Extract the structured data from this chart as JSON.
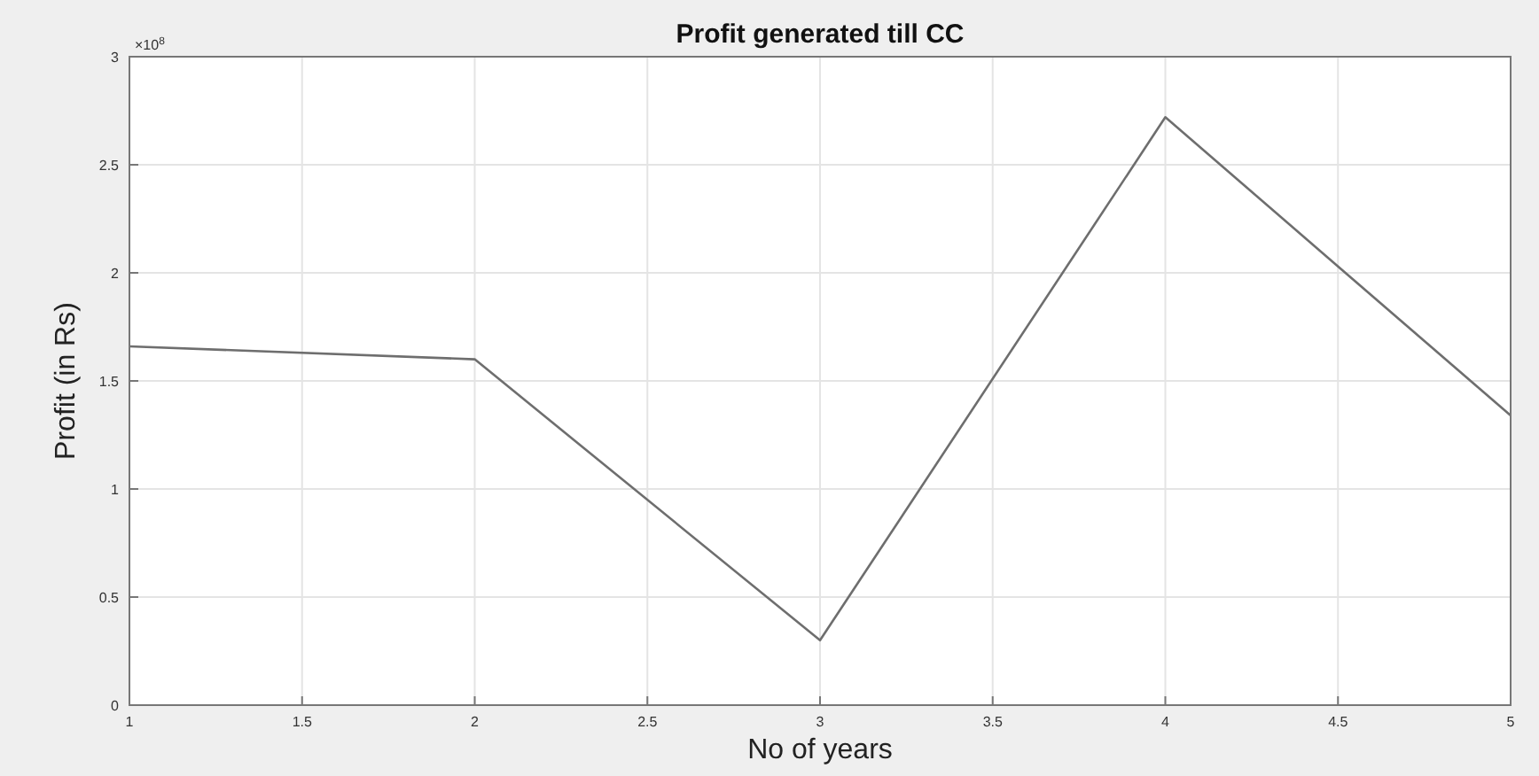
{
  "chart_data": {
    "type": "line",
    "title": "Profit generated till CC",
    "xlabel": "No of years",
    "ylabel": "Profit (in Rs)",
    "annotations": [
      "×10$^{8}$"
    ],
    "x": [
      1,
      2,
      3,
      4,
      5
    ],
    "series": [
      {
        "color": "#6e6e6e",
        "values": [
          1.66,
          1.6,
          0.3,
          2.72,
          1.34
        ]
      }
    ],
    "xlim": [
      1,
      5
    ],
    "xticks": [
      1,
      1.5,
      2,
      2.5,
      3,
      3.5,
      4,
      4.5,
      5
    ],
    "ylim": [
      0,
      3
    ],
    "yticks": [
      0,
      0.5,
      1,
      1.5,
      2,
      2.5,
      3
    ],
    "grid": true,
    "marker": "none",
    "line_style": "solid"
  }
}
